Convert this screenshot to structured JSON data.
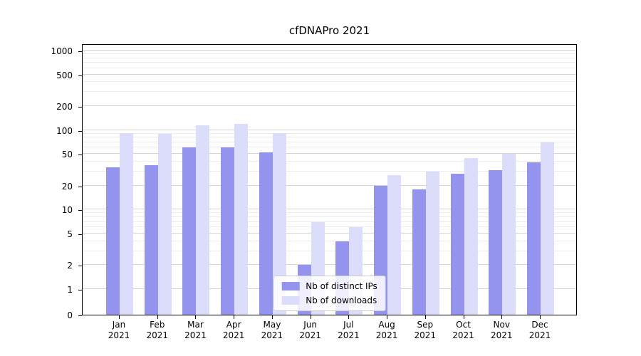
{
  "chart_data": {
    "type": "bar",
    "title": "cfDNAPro 2021",
    "yscale": "symlog",
    "grid": true,
    "legend_position": "lower center",
    "xlabel": "",
    "ylabel": "",
    "ylim": [
      0,
      1200
    ],
    "yticks": [
      0,
      1,
      2,
      5,
      10,
      20,
      50,
      100,
      200,
      500,
      1000
    ],
    "categories": [
      "Jan 2021",
      "Feb 2021",
      "Mar 2021",
      "Apr 2021",
      "May 2021",
      "Jun 2021",
      "Jul 2021",
      "Aug 2021",
      "Sep 2021",
      "Oct 2021",
      "Nov 2021",
      "Dec 2021"
    ],
    "series": [
      {
        "id": "distinct-ips",
        "name": "Nb of distinct IPs",
        "color": "#9493ee",
        "values": [
          34,
          36,
          60,
          60,
          52,
          2,
          4,
          20,
          18,
          28,
          31,
          39
        ]
      },
      {
        "id": "downloads",
        "name": "Nb of downloads",
        "color": "#dcdcfb",
        "values": [
          91,
          89,
          115,
          120,
          91,
          7,
          6,
          27,
          30,
          44,
          50,
          70
        ]
      }
    ]
  }
}
